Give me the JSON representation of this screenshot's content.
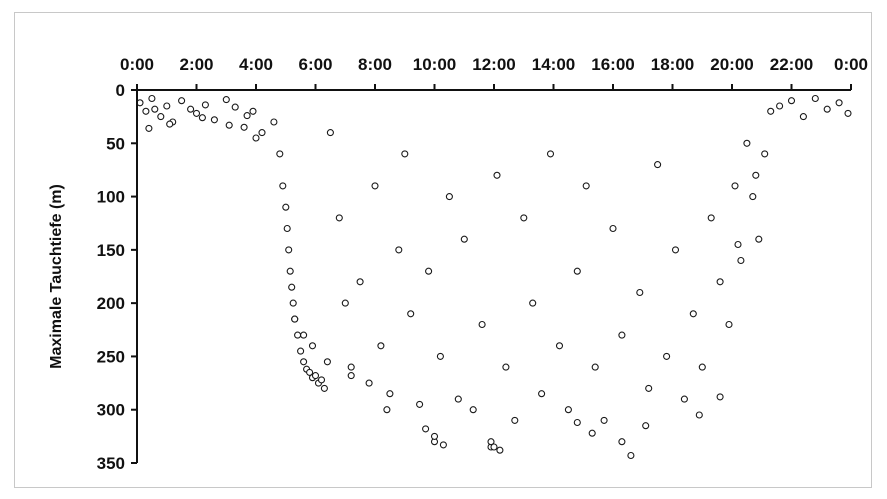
{
  "chart_data": {
    "type": "scatter",
    "title": "",
    "xlabel": "",
    "ylabel": "Maximale Tauchtiefe (m)",
    "x_tick_labels": [
      "0:00",
      "2:00",
      "4:00",
      "6:00",
      "8:00",
      "10:00",
      "12:00",
      "14:00",
      "16:00",
      "18:00",
      "20:00",
      "22:00",
      "0:00"
    ],
    "y_tick_labels": [
      "0",
      "50",
      "100",
      "150",
      "200",
      "250",
      "300",
      "350"
    ],
    "xlim": [
      0,
      24
    ],
    "ylim": [
      0,
      350
    ],
    "y_inverted": true,
    "x_axis_position": "top",
    "grid": false,
    "legend": "none",
    "marker": {
      "shape": "open-circle",
      "fill": "#ffffff",
      "stroke": "#1a1a1a"
    },
    "series": [
      {
        "x": [
          0.1,
          0.3,
          0.5,
          0.8,
          1.0,
          1.2,
          1.5,
          1.8,
          2.0,
          2.3,
          2.6,
          3.0,
          3.3,
          3.6,
          3.9,
          4.2,
          0.4,
          1.1,
          2.2,
          3.1,
          0.6,
          3.7,
          4.0,
          4.6,
          4.8,
          4.9,
          5.0,
          5.05,
          5.1,
          5.15,
          5.2,
          5.25,
          5.3,
          5.4,
          5.5,
          5.6,
          5.7,
          5.8,
          5.9,
          6.0,
          6.1,
          6.2,
          6.3,
          6.5,
          6.8,
          7.0,
          7.2,
          7.5,
          7.8,
          8.0,
          8.2,
          8.5,
          8.8,
          9.0,
          9.2,
          9.5,
          9.8,
          10.0,
          10.2,
          10.5,
          10.8,
          11.0,
          11.3,
          11.6,
          11.9,
          12.1,
          12.4,
          12.7,
          13.0,
          13.3,
          13.6,
          13.9,
          14.2,
          14.5,
          14.8,
          15.1,
          15.4,
          15.7,
          16.0,
          16.3,
          16.6,
          16.9,
          17.2,
          17.5,
          17.8,
          18.1,
          18.4,
          18.7,
          19.0,
          19.3,
          19.6,
          19.9,
          20.1,
          20.3,
          20.5,
          20.7,
          20.9,
          21.1,
          21.3,
          21.6,
          22.0,
          22.4,
          22.8,
          23.2,
          23.6,
          23.9,
          10.0,
          10.3,
          11.9,
          12.0,
          12.2,
          16.3,
          9.7,
          14.8,
          15.3,
          17.1,
          18.9,
          19.6,
          8.4,
          7.2,
          6.4,
          5.9,
          5.6,
          5.3,
          20.2,
          20.8
        ],
        "y": [
          12,
          20,
          8,
          25,
          15,
          30,
          10,
          18,
          22,
          14,
          28,
          9,
          16,
          35,
          20,
          40,
          36,
          32,
          26,
          33,
          18,
          24,
          45,
          30,
          60,
          90,
          110,
          130,
          150,
          170,
          185,
          200,
          215,
          230,
          245,
          255,
          262,
          265,
          270,
          268,
          275,
          272,
          280,
          40,
          120,
          200,
          260,
          180,
          275,
          90,
          240,
          285,
          150,
          60,
          210,
          295,
          170,
          330,
          250,
          100,
          290,
          140,
          300,
          220,
          335,
          80,
          260,
          310,
          120,
          200,
          285,
          60,
          240,
          300,
          170,
          90,
          260,
          310,
          130,
          230,
          343,
          190,
          280,
          70,
          250,
          150,
          290,
          210,
          260,
          120,
          180,
          220,
          90,
          160,
          50,
          100,
          140,
          60,
          20,
          15,
          10,
          25,
          8,
          18,
          12,
          22,
          325,
          333,
          330,
          335,
          338,
          330,
          318,
          312,
          322,
          315,
          305,
          288,
          300,
          268,
          255,
          240,
          230,
          215,
          145,
          80
        ]
      }
    ]
  }
}
